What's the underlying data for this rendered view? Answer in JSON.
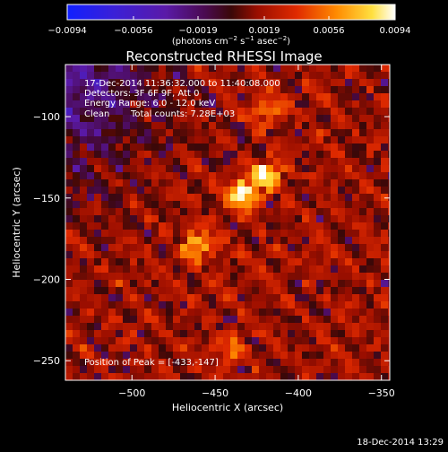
{
  "chart_data": {
    "type": "heatmap",
    "title": "Reconstructed RHESSI Image",
    "xlabel": "Heliocentric X (arcsec)",
    "ylabel": "Heliocentric Y (arcsec)",
    "xlim": [
      -540,
      -345
    ],
    "ylim": [
      -262,
      -68
    ],
    "x_ticks": [
      {
        "value": -500,
        "label": "−500"
      },
      {
        "value": -450,
        "label": "−450"
      },
      {
        "value": -400,
        "label": "−400"
      },
      {
        "value": -350,
        "label": "−350"
      }
    ],
    "y_ticks": [
      {
        "value": -100,
        "label": "−100"
      },
      {
        "value": -150,
        "label": "−150"
      },
      {
        "value": -200,
        "label": "−200"
      },
      {
        "value": -250,
        "label": "−250"
      }
    ],
    "colorbar": {
      "min": -0.0094,
      "max": 0.0094,
      "ticks": [
        {
          "value": -0.0094,
          "label": "−0.0094"
        },
        {
          "value": -0.0056,
          "label": "−0.0056"
        },
        {
          "value": -0.0019,
          "label": "−0.0019"
        },
        {
          "value": 0.0019,
          "label": "0.0019"
        },
        {
          "value": 0.0056,
          "label": "0.0056"
        },
        {
          "value": 0.0094,
          "label": "0.0094"
        }
      ],
      "units": {
        "pre": "(photons cm",
        "sup1": "−2",
        "mid": " s",
        "sup2": "−1",
        "mid2": " asec",
        "sup3": "−2",
        "post": ")"
      },
      "colormap": "red temperature (blue → purple → red → orange → yellow → white)"
    },
    "sources": [
      {
        "x": -433,
        "y": -147,
        "relative_intensity": 1.0
      },
      {
        "x": -418,
        "y": -135,
        "relative_intensity": 0.9
      },
      {
        "x": -460,
        "y": -178,
        "relative_intensity": 0.75
      },
      {
        "x": -418,
        "y": -97,
        "relative_intensity": 0.55
      },
      {
        "x": -440,
        "y": -243,
        "relative_intensity": 0.45
      }
    ],
    "background": "ringing / mottled pattern, near zero with negative (purple) region at upper left",
    "annotations": {
      "time_range": "17-Dec-2014 11:36:32.000 to 11:40:08.000",
      "detectors": "Detectors: 3F 6F 9F, Att 0",
      "energy": "Energy Range: 6.0 - 12.0 keV",
      "clean_label": "Clean",
      "total_counts": "Total counts: 7.28E+03",
      "peak_position": "Position of Peak = [-433,-147]"
    },
    "footer_date": "18-Dec-2014 13:29"
  }
}
